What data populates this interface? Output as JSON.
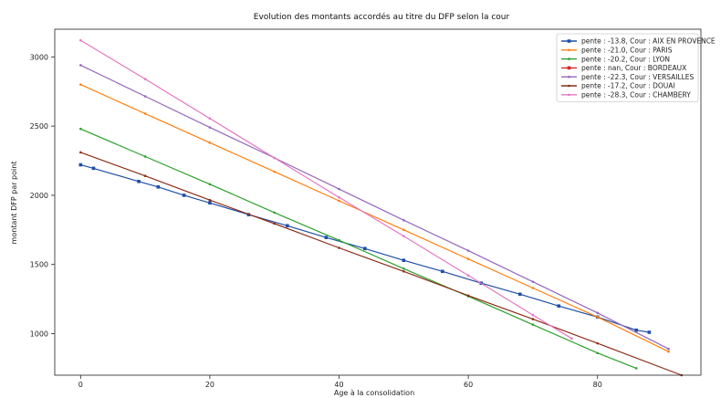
{
  "chart_data": {
    "type": "line",
    "title": "Evolution des montants accordés au titre du DFP selon la cour",
    "xlabel": "Age à la consolidation",
    "ylabel": "montant DFP par point",
    "xlim": [
      -4,
      96
    ],
    "ylim": [
      700,
      3200
    ],
    "xticks": [
      0,
      20,
      40,
      60,
      80
    ],
    "yticks": [
      1000,
      1500,
      2000,
      2500,
      3000
    ],
    "grid": false,
    "legend_position": "top-right",
    "series": [
      {
        "name": "pente : -13.8, Cour : AIX EN PROVENCE",
        "color": "#1f4fa8",
        "marker": "square",
        "x": [
          0,
          2,
          9,
          12,
          16,
          20,
          26,
          32,
          38,
          44,
          50,
          56,
          62,
          68,
          74,
          80,
          86,
          88
        ],
        "y": [
          2220,
          2195,
          2100,
          2060,
          2000,
          1945,
          1860,
          1780,
          1695,
          1615,
          1530,
          1450,
          1365,
          1285,
          1200,
          1120,
          1025,
          1010
        ]
      },
      {
        "name": "pente : -21.0, Cour : PARIS",
        "color": "#ff7f0e",
        "marker": "point",
        "x": [
          0,
          10,
          20,
          30,
          40,
          50,
          60,
          70,
          80,
          91
        ],
        "y": [
          2800,
          2590,
          2380,
          2170,
          1960,
          1750,
          1540,
          1330,
          1120,
          870
        ]
      },
      {
        "name": "pente : -20.2, Cour : LYON",
        "color": "#2ca02c",
        "marker": "point",
        "x": [
          0,
          10,
          20,
          30,
          40,
          50,
          60,
          70,
          80,
          86
        ],
        "y": [
          2480,
          2280,
          2080,
          1875,
          1675,
          1470,
          1270,
          1065,
          860,
          750
        ]
      },
      {
        "name": "pente : nan, Cour : BORDEAUX",
        "color": "#d62728",
        "marker": "square",
        "x": [],
        "y": []
      },
      {
        "name": "pente : -22.3, Cour : VERSAILLES",
        "color": "#9467bd",
        "marker": "point",
        "x": [
          0,
          10,
          20,
          30,
          40,
          50,
          60,
          70,
          80,
          91
        ],
        "y": [
          2940,
          2715,
          2490,
          2270,
          2045,
          1820,
          1600,
          1375,
          1150,
          890
        ]
      },
      {
        "name": "pente : -17.2, Cour : DOUAI",
        "color": "#8c2d19",
        "marker": "point",
        "x": [
          0,
          10,
          20,
          30,
          40,
          50,
          60,
          70,
          80,
          93
        ],
        "y": [
          2310,
          2140,
          1965,
          1795,
          1620,
          1450,
          1275,
          1105,
          930,
          700
        ]
      },
      {
        "name": "pente : -28.3, Cour : CHAMBERY",
        "color": "#e377c2",
        "marker": "point",
        "x": [
          0,
          10,
          20,
          30,
          40,
          50,
          60,
          70,
          76
        ],
        "y": [
          3120,
          2840,
          2555,
          2270,
          1985,
          1705,
          1420,
          1135,
          965
        ]
      }
    ]
  }
}
